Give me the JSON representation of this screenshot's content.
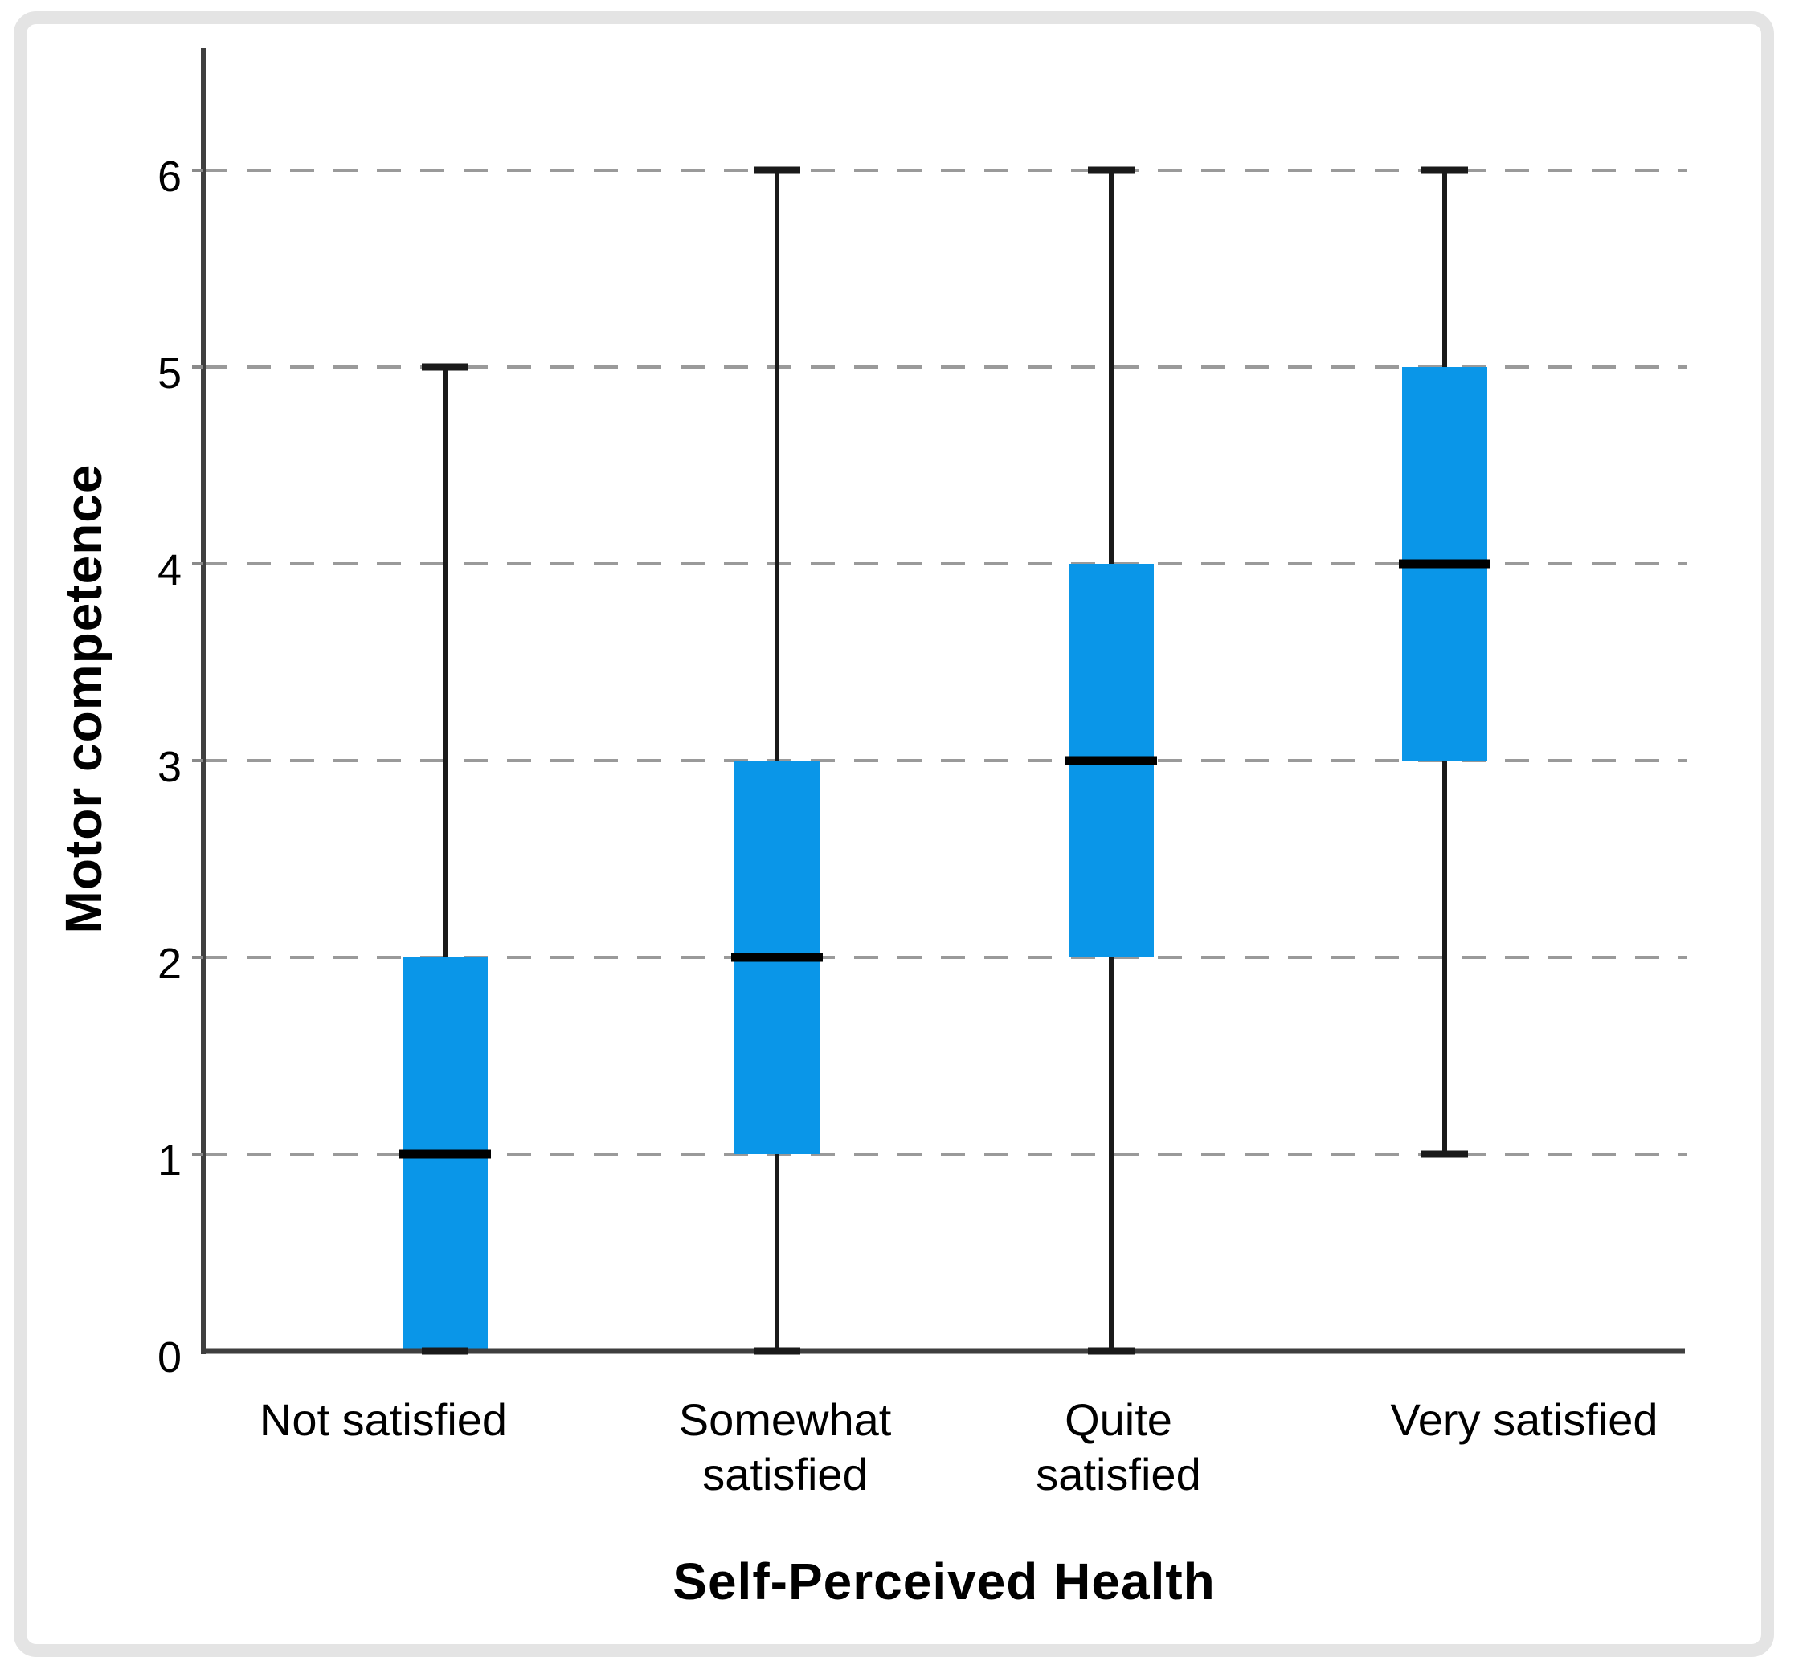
{
  "figure": {
    "background": "#ffffff",
    "frame_color": "#e4e4e4"
  },
  "chart_data": {
    "type": "box",
    "title": "",
    "xlabel": "Self-Perceived Health",
    "ylabel": "Motor competence",
    "categories": [
      "Not satisfied",
      "Somewhat satisfied",
      "Quite satisfied",
      "Very satisfied"
    ],
    "category_lines": [
      [
        "Not satisfied"
      ],
      [
        "Somewhat",
        "satisfied"
      ],
      [
        "Quite",
        "satisfied"
      ],
      [
        "Very satisfied"
      ]
    ],
    "series": [
      {
        "category": "Not satisfied",
        "whisker_low": 0,
        "q1": 0,
        "median": 1,
        "q3": 2,
        "whisker_high": 5
      },
      {
        "category": "Somewhat satisfied",
        "whisker_low": 0,
        "q1": 1,
        "median": 2,
        "q3": 3,
        "whisker_high": 6
      },
      {
        "category": "Quite satisfied",
        "whisker_low": 0,
        "q1": 2,
        "median": 3,
        "q3": 4,
        "whisker_high": 6
      },
      {
        "category": "Very satisfied",
        "whisker_low": 1,
        "q1": 3,
        "median": 4,
        "q3": 5,
        "whisker_high": 6
      }
    ],
    "yticks": [
      0,
      1,
      2,
      3,
      4,
      5,
      6
    ],
    "ylim": [
      0,
      6.6
    ],
    "grid": "horizontal-dashed",
    "legend": "none",
    "box_fill": "#0A96E8",
    "median_color": "#000000",
    "whisker_color": "#1a1a1a",
    "axis_color": "#3f3f3f",
    "grid_color": "#9a9a9a",
    "tick_color": "#8a8a8a",
    "text_color": "#000000"
  }
}
